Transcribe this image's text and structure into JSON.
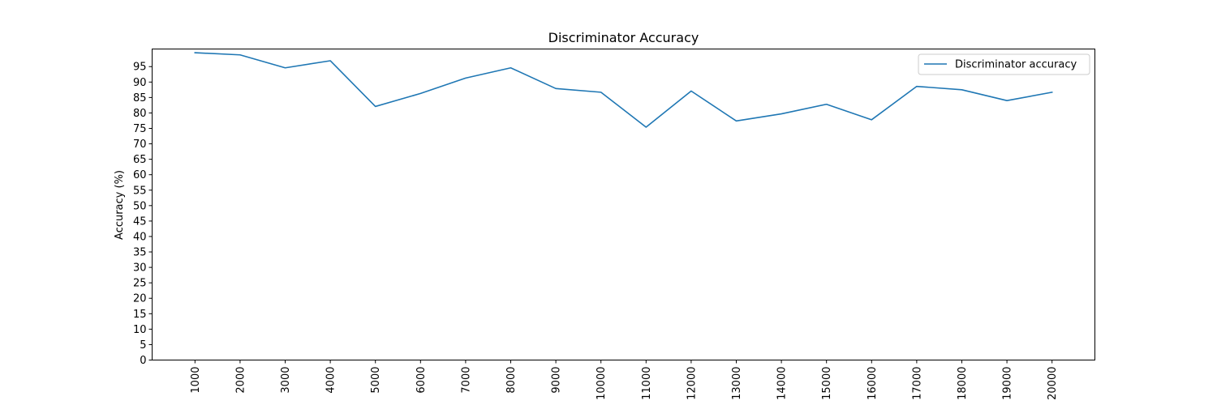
{
  "chart_data": {
    "type": "line",
    "title": "Discriminator Accuracy",
    "xlabel": "",
    "ylabel": "Accuracy (%)",
    "x": [
      1000,
      2000,
      3000,
      4000,
      5000,
      6000,
      7000,
      8000,
      9000,
      10000,
      11000,
      12000,
      13000,
      14000,
      15000,
      16000,
      17000,
      18000,
      19000,
      20000
    ],
    "series": [
      {
        "name": "Discriminator accuracy",
        "color": "#1f77b4",
        "values": [
          99.5,
          98.8,
          94.6,
          96.9,
          82.1,
          86.3,
          91.3,
          94.6,
          87.9,
          86.7,
          75.4,
          87.1,
          77.4,
          79.7,
          82.8,
          77.8,
          88.6,
          87.5,
          84.0,
          86.7
        ]
      }
    ],
    "yticks": [
      0,
      5,
      10,
      15,
      20,
      25,
      30,
      35,
      40,
      45,
      50,
      55,
      60,
      65,
      70,
      75,
      80,
      85,
      90,
      95
    ],
    "ylim": [
      0,
      100.7
    ],
    "xlim": [
      50,
      20950
    ],
    "grid": false,
    "legend": "top-right"
  }
}
